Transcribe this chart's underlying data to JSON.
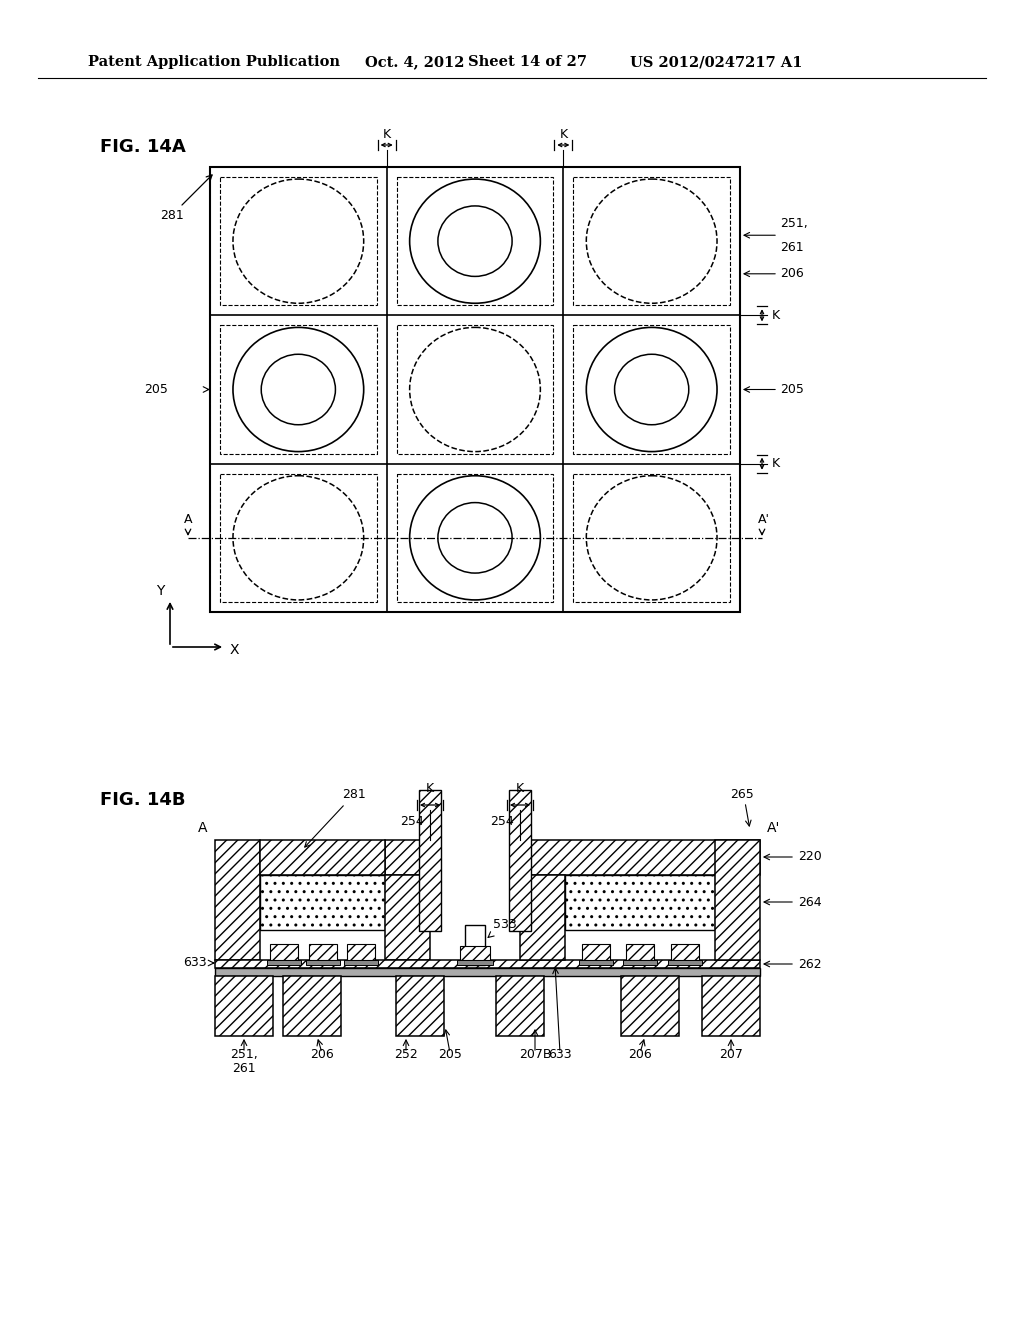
{
  "bg_color": "#ffffff",
  "header_text": "Patent Application Publication",
  "header_date": "Oct. 4, 2012",
  "header_sheet": "Sheet 14 of 27",
  "header_patent": "US 2012/0247217 A1",
  "fig14a_label": "FIG. 14A",
  "fig14b_label": "FIG. 14B"
}
